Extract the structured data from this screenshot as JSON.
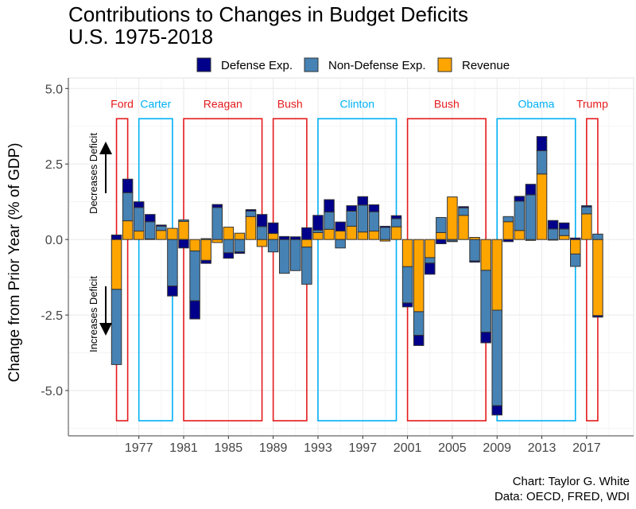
{
  "chart_data": {
    "type": "bar",
    "stacked": true,
    "title": "Contributions to Changes in Budget Deficits",
    "subtitle": "U.S. 1975-2018",
    "ylabel": "Change from Prior Year (% of GDP)",
    "xlabel": "",
    "ylim": [
      -6.5,
      5.35
    ],
    "xlim": [
      1970.7,
      2021.2
    ],
    "yticks": [
      5.0,
      2.5,
      0.0,
      -2.5,
      -5.0
    ],
    "ytick_labels": [
      "5.0",
      "2.5",
      "0.0",
      "-2.5",
      "-5.0"
    ],
    "xticks": [
      1977,
      1981,
      1985,
      1989,
      1993,
      1997,
      2001,
      2005,
      2009,
      2013,
      2017
    ],
    "xtick_labels": [
      "1977",
      "1981",
      "1985",
      "1989",
      "1993",
      "1997",
      "2001",
      "2005",
      "2009",
      "2013",
      "2017"
    ],
    "grid": true,
    "legend_position": "top",
    "x": [
      1975,
      1976,
      1977,
      1978,
      1979,
      1980,
      1981,
      1982,
      1983,
      1984,
      1985,
      1986,
      1987,
      1988,
      1989,
      1990,
      1991,
      1992,
      1993,
      1994,
      1995,
      1996,
      1997,
      1998,
      1999,
      2000,
      2001,
      2002,
      2003,
      2004,
      2005,
      2006,
      2007,
      2008,
      2009,
      2010,
      2011,
      2012,
      2013,
      2014,
      2015,
      2016,
      2017,
      2018
    ],
    "series": [
      {
        "name": "Defense Exp.",
        "color": "#00008B",
        "values": [
          0.15,
          0.45,
          0.19,
          0.24,
          0.04,
          -0.33,
          -0.28,
          -0.6,
          -0.1,
          0.1,
          -0.18,
          -0.05,
          0.05,
          0.4,
          0.35,
          0.1,
          0.09,
          0.39,
          0.49,
          0.41,
          0.3,
          0.18,
          0.28,
          0.23,
          0.04,
          0.1,
          -0.13,
          -0.34,
          -0.37,
          -0.14,
          -0.02,
          0.04,
          -0.04,
          -0.35,
          -0.31,
          -0.07,
          0.16,
          0.35,
          0.47,
          0.28,
          0.2,
          0.05,
          0.04,
          -0.05
        ]
      },
      {
        "name": "Non-Defense Exp.",
        "color": "#4682B4",
        "values": [
          -2.49,
          0.93,
          0.78,
          0.57,
          0.14,
          -1.54,
          0.05,
          -1.65,
          0.03,
          1.06,
          -0.44,
          -0.41,
          0.18,
          0.43,
          -0.41,
          -1.12,
          -1.03,
          -1.23,
          0.08,
          0.57,
          -0.28,
          0.5,
          0.89,
          0.64,
          0.4,
          0.27,
          -1.2,
          -0.78,
          -0.18,
          0.5,
          -0.05,
          0.25,
          -0.71,
          -2.05,
          -3.16,
          0.17,
          0.97,
          1.48,
          0.77,
          0.35,
          0.22,
          -0.41,
          0.23,
          0.18
        ]
      },
      {
        "name": "Revenue",
        "color": "#FFA500",
        "values": [
          -1.65,
          0.62,
          0.28,
          0.02,
          0.3,
          0.37,
          0.6,
          -0.38,
          -0.69,
          -0.1,
          0.41,
          0.21,
          0.76,
          -0.23,
          0.2,
          0,
          0,
          -0.25,
          0.23,
          0.34,
          0.28,
          0.44,
          0.25,
          0.28,
          -0.05,
          0.42,
          -0.9,
          -2.39,
          -0.6,
          0.23,
          1.41,
          0.8,
          0.07,
          -1.02,
          -2.34,
          0.59,
          0.3,
          -0.03,
          2.17,
          -0.02,
          0.13,
          -0.48,
          0.85,
          -2.52
        ]
      }
    ],
    "annotations": {
      "presidents": [
        {
          "name": "Ford",
          "start": 1975,
          "end": 1976,
          "color": "#E41A1C"
        },
        {
          "name": "Carter",
          "start": 1977,
          "end": 1980,
          "color": "#00B0F6"
        },
        {
          "name": "Reagan",
          "start": 1981,
          "end": 1988,
          "color": "#E41A1C"
        },
        {
          "name": "Bush",
          "start": 1989,
          "end": 1992,
          "color": "#E41A1C"
        },
        {
          "name": "Clinton",
          "start": 1993,
          "end": 2000,
          "color": "#00B0F6"
        },
        {
          "name": "Bush",
          "start": 2001,
          "end": 2008,
          "color": "#E41A1C"
        },
        {
          "name": "Obama",
          "start": 2009,
          "end": 2016,
          "color": "#00B0F6"
        },
        {
          "name": "Trump",
          "start": 2017,
          "end": 2018,
          "color": "#E41A1C"
        }
      ],
      "box_range": [
        -6.0,
        4.0
      ],
      "label_y": 4.5,
      "decreases_label": "Decreases Deficit",
      "increases_label": "Increases Deficit"
    },
    "caption": [
      "Chart: Taylor G. White",
      "Data: OECD, FRED, WDI"
    ]
  }
}
